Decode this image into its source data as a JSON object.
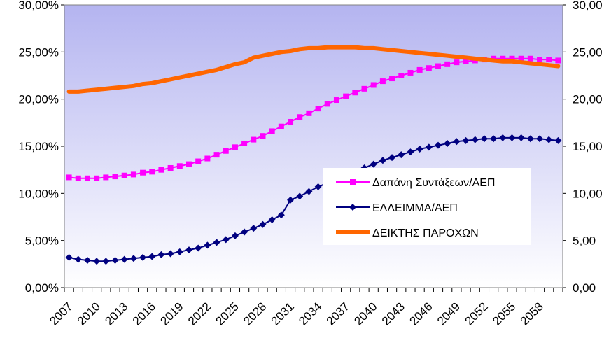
{
  "chart_data": {
    "type": "line",
    "title": "",
    "xlabel": "",
    "ylabel": "",
    "x": [
      2007,
      2008,
      2009,
      2010,
      2011,
      2012,
      2013,
      2014,
      2015,
      2016,
      2017,
      2018,
      2019,
      2020,
      2021,
      2022,
      2023,
      2024,
      2025,
      2026,
      2027,
      2028,
      2029,
      2030,
      2031,
      2032,
      2033,
      2034,
      2035,
      2036,
      2037,
      2038,
      2039,
      2040,
      2041,
      2042,
      2043,
      2044,
      2045,
      2046,
      2047,
      2048,
      2049,
      2050,
      2051,
      2052,
      2053,
      2054,
      2055,
      2056,
      2057,
      2058,
      2059,
      2060
    ],
    "x_tick_labels": [
      "2007",
      "2010",
      "2013",
      "2016",
      "2019",
      "2022",
      "2025",
      "2028",
      "2031",
      "2034",
      "2037",
      "2040",
      "2043",
      "2046",
      "2049",
      "2052",
      "2055",
      "2058"
    ],
    "y_left": {
      "ylim": [
        0,
        30
      ],
      "tick_labels": [
        "0,00%",
        "5,00%",
        "10,00%",
        "15,00%",
        "20,00%",
        "25,00%",
        "30,00%"
      ]
    },
    "y_right": {
      "ylim": [
        0,
        30
      ],
      "tick_labels": [
        "0,00",
        "5,00",
        "10,00",
        "15,00",
        "20,00",
        "25,00",
        "30,00"
      ]
    },
    "grid": false,
    "legend_position": "middle-right",
    "series": [
      {
        "name": "Δαπάνη Συντάξεων/ΑΕΠ",
        "axis": "left",
        "color": "#ff00ff",
        "marker": "square",
        "values": [
          11.7,
          11.6,
          11.6,
          11.6,
          11.7,
          11.8,
          11.9,
          12.0,
          12.2,
          12.3,
          12.5,
          12.7,
          12.9,
          13.1,
          13.4,
          13.7,
          14.1,
          14.5,
          14.9,
          15.3,
          15.7,
          16.1,
          16.6,
          17.1,
          17.6,
          18.1,
          18.5,
          19.0,
          19.5,
          19.9,
          20.3,
          20.7,
          21.1,
          21.5,
          21.9,
          22.2,
          22.5,
          22.8,
          23.1,
          23.3,
          23.5,
          23.7,
          23.9,
          24.0,
          24.1,
          24.2,
          24.3,
          24.3,
          24.3,
          24.3,
          24.3,
          24.2,
          24.2,
          24.1
        ]
      },
      {
        "name": "ΕΛΛΕΙΜΜΑ/ΑΕΠ",
        "axis": "left",
        "color": "#000080",
        "marker": "diamond",
        "values": [
          3.2,
          3.0,
          2.9,
          2.8,
          2.8,
          2.9,
          3.0,
          3.1,
          3.2,
          3.3,
          3.5,
          3.6,
          3.8,
          4.0,
          4.2,
          4.5,
          4.8,
          5.1,
          5.5,
          5.9,
          6.3,
          6.7,
          7.2,
          7.7,
          9.3,
          9.7,
          10.2,
          10.7,
          11.1,
          11.5,
          11.9,
          12.3,
          12.7,
          13.1,
          13.5,
          13.8,
          14.1,
          14.4,
          14.7,
          14.9,
          15.1,
          15.3,
          15.5,
          15.6,
          15.7,
          15.8,
          15.8,
          15.9,
          15.9,
          15.9,
          15.8,
          15.8,
          15.7,
          15.6
        ]
      },
      {
        "name": "ΔΕΙΚΤΗΣ ΠΑΡΟΧΩΝ",
        "axis": "left",
        "color": "#ff6600",
        "marker": "none",
        "values": [
          20.8,
          20.8,
          20.9,
          21.0,
          21.1,
          21.2,
          21.3,
          21.4,
          21.6,
          21.7,
          21.9,
          22.1,
          22.3,
          22.5,
          22.7,
          22.9,
          23.1,
          23.4,
          23.7,
          23.9,
          24.4,
          24.6,
          24.8,
          25.0,
          25.1,
          25.3,
          25.4,
          25.4,
          25.5,
          25.5,
          25.5,
          25.5,
          25.4,
          25.4,
          25.3,
          25.2,
          25.1,
          25.0,
          24.9,
          24.8,
          24.7,
          24.6,
          24.5,
          24.4,
          24.3,
          24.2,
          24.1,
          24.0,
          24.0,
          23.9,
          23.8,
          23.7,
          23.6,
          23.5
        ]
      }
    ]
  }
}
